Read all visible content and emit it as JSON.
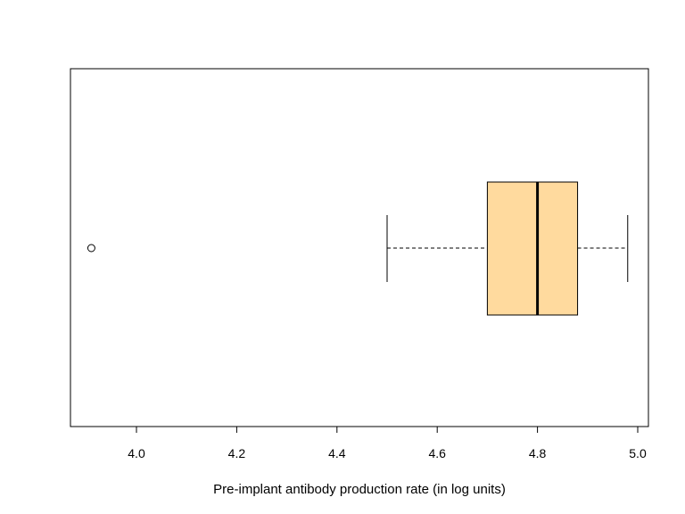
{
  "chart_data": {
    "type": "boxplot",
    "orientation": "horizontal",
    "title": "",
    "xlabel": "Pre-implant antibody production rate (in log units)",
    "ylabel": "",
    "xlim": [
      3.86,
      5.02
    ],
    "xticks": [
      4.0,
      4.2,
      4.4,
      4.6,
      4.8,
      5.0
    ],
    "xtick_labels": [
      "4.0",
      "4.2",
      "4.4",
      "4.6",
      "4.8",
      "5.0"
    ],
    "grid": false,
    "legend": "none",
    "box_color": "#FFDA9E",
    "boxes": [
      {
        "whisker_low": 4.5,
        "q1": 4.7,
        "median": 4.8,
        "q3": 4.88,
        "whisker_high": 4.98,
        "outliers": [
          3.91
        ]
      }
    ]
  }
}
